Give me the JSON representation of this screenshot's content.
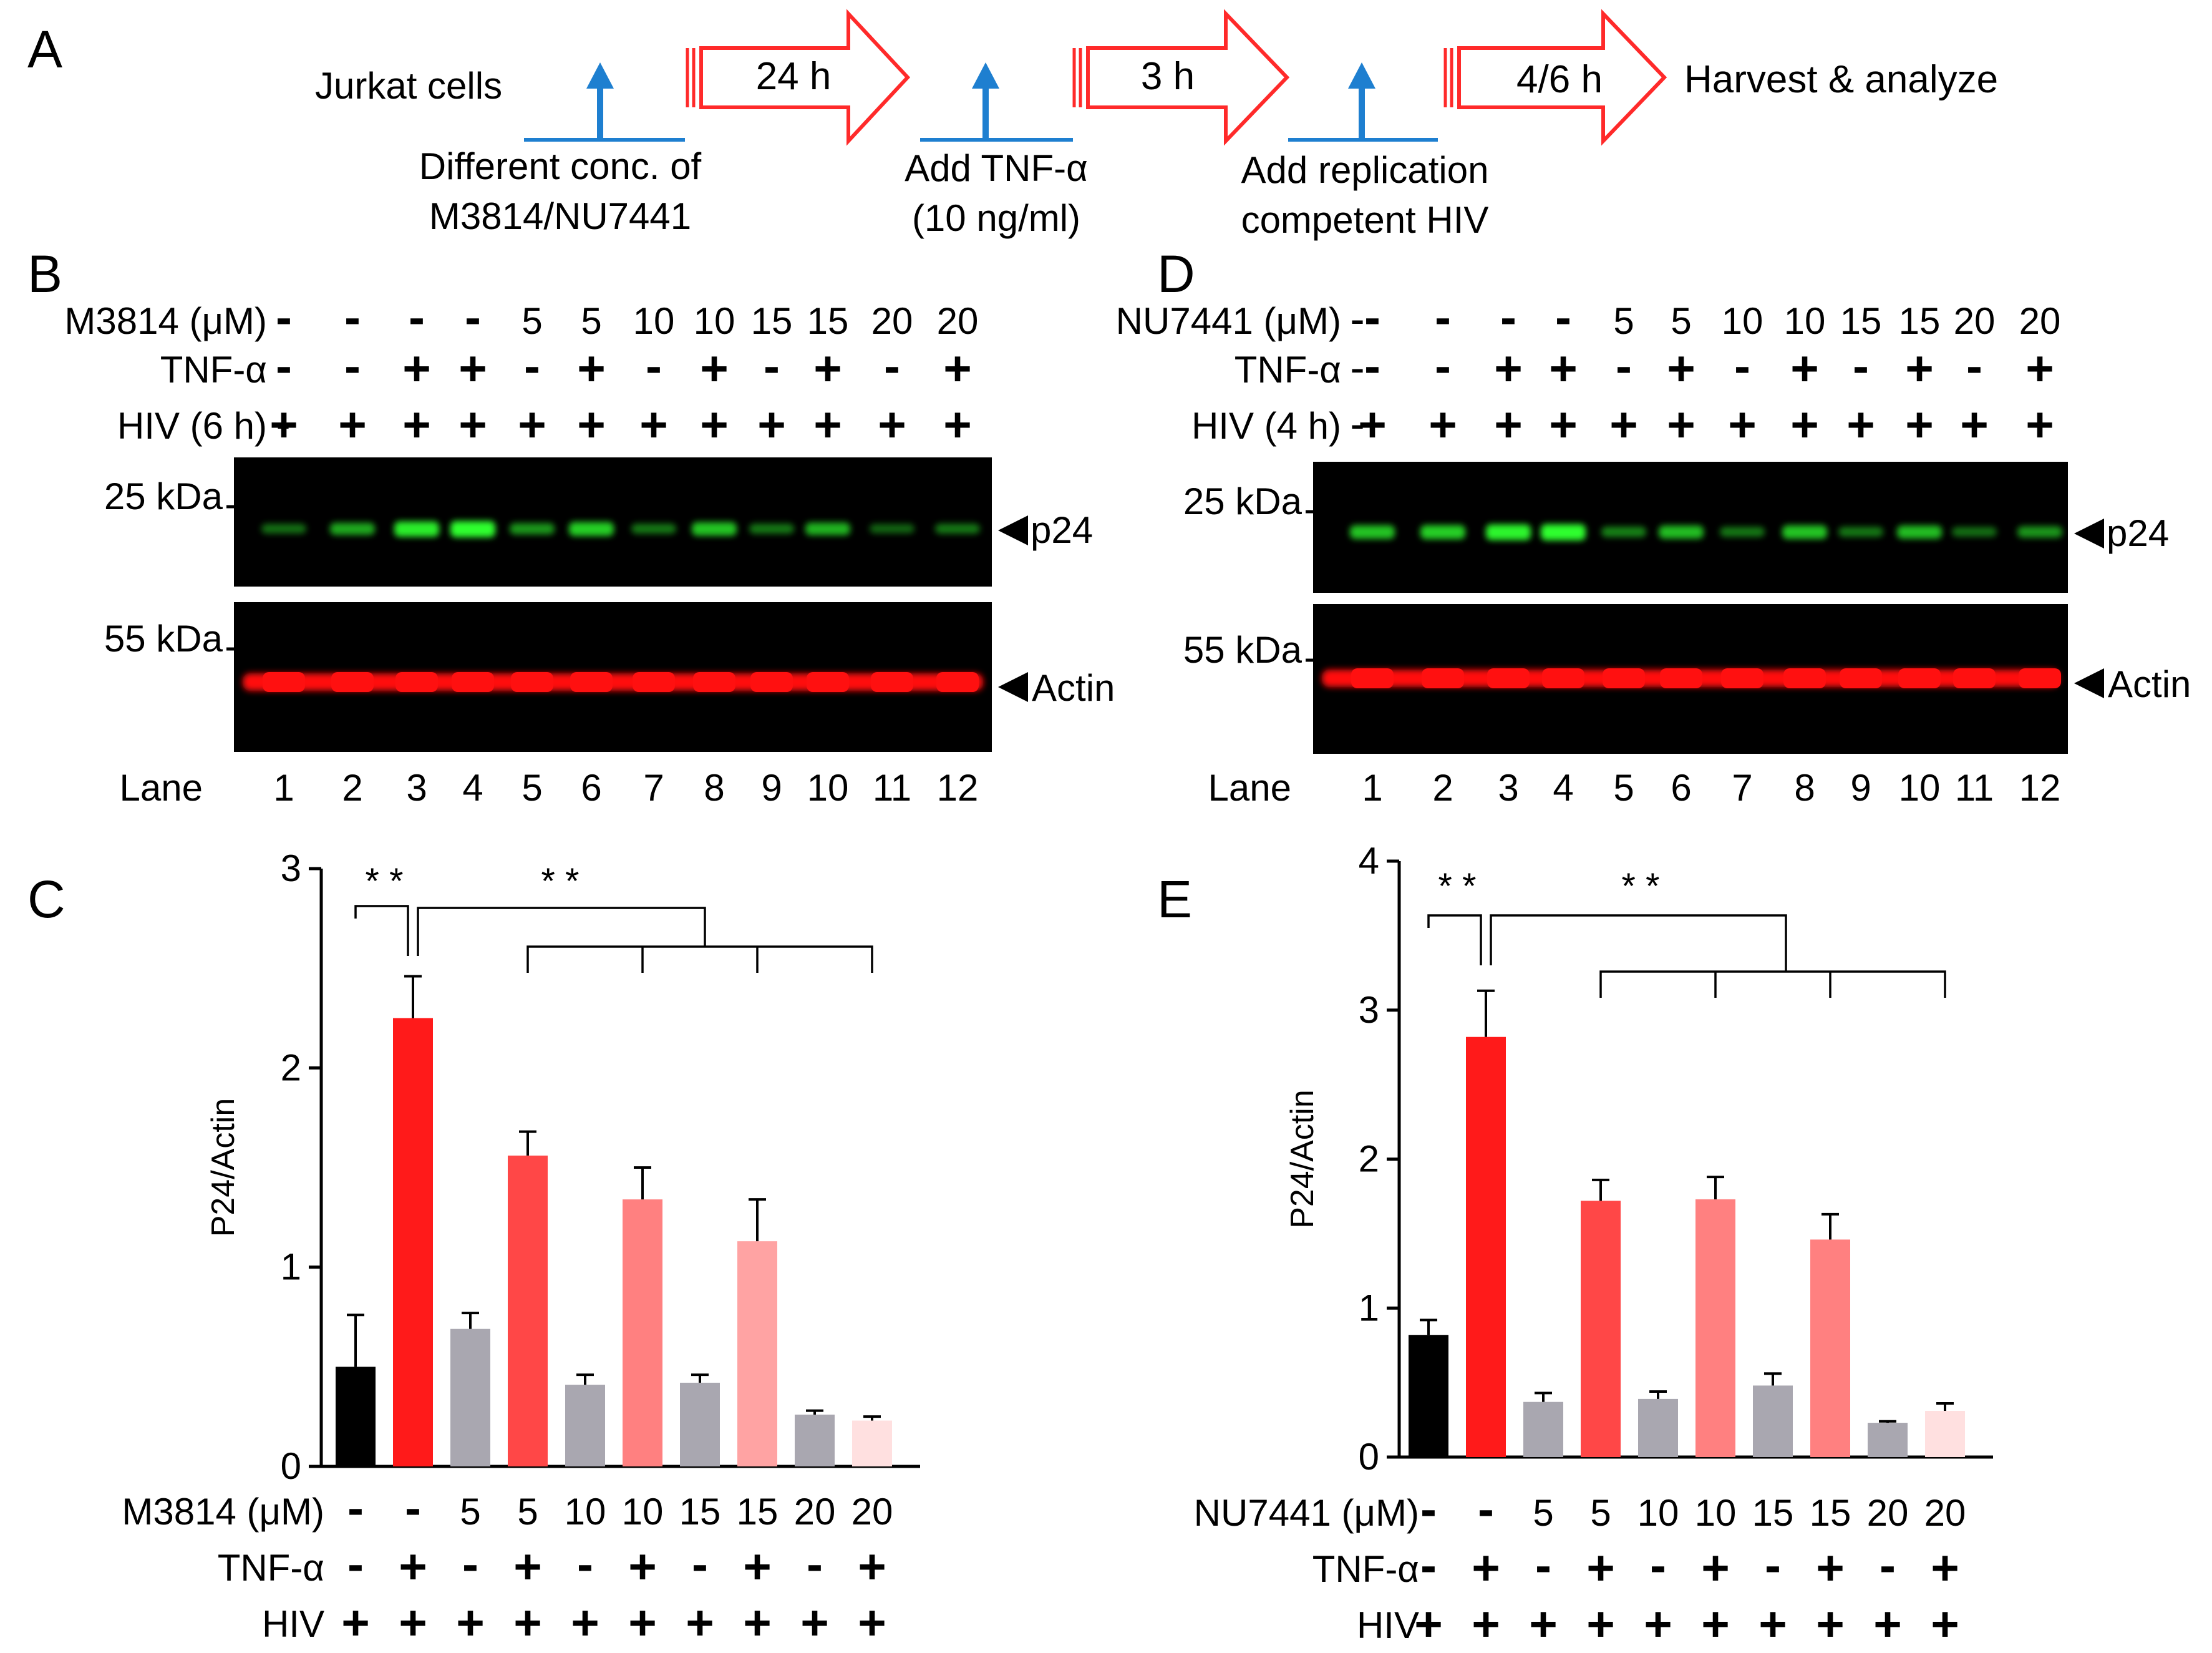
{
  "panel_letters": {
    "a": "A",
    "b": "B",
    "c": "C",
    "d": "D",
    "e": "E"
  },
  "colors": {
    "black": "#000000",
    "red": "#ff1a1a",
    "red2": "#ff4747",
    "red3": "#ff8080",
    "red4": "#ffa3a3",
    "pink": "#ffe0e0",
    "gray": "#a9a7b0",
    "arrow_red": "#ff2a2a",
    "arrow_blue": "#1e7fd0",
    "blot_green": "#2dff2d",
    "blot_red": "#ff1010"
  },
  "schematic": {
    "start_label": "Jurkat cells",
    "steps": [
      {
        "duration": "24 h",
        "note_line1": "Different conc. of",
        "note_line2": "M3814/NU7441"
      },
      {
        "duration": "3 h",
        "note_line1": "Add TNF-α",
        "note_line2": "(10 ng/ml)"
      },
      {
        "duration": "4/6 h",
        "note_line1": "Add replication",
        "note_line2": "competent HIV"
      }
    ],
    "end_label": "Harvest & analyze"
  },
  "blot_b": {
    "drug_label": "M3814 (μM)",
    "tnf_label": "TNF-α",
    "hiv_label": "HIV (6 h)",
    "drug_row": [
      "-",
      "-",
      "-",
      "-",
      "5",
      "5",
      "10",
      "10",
      "15",
      "15",
      "20",
      "20"
    ],
    "tnf_row": [
      "-",
      "-",
      "+",
      "+",
      "-",
      "+",
      "-",
      "+",
      "-",
      "+",
      "-",
      "+"
    ],
    "hiv_row": [
      "+",
      "+",
      "+",
      "+",
      "+",
      "+",
      "+",
      "+",
      "+",
      "+",
      "+",
      "+"
    ],
    "marker_top": "25 kDa",
    "marker_bottom": "55 kDa",
    "band_top": "p24",
    "band_bottom": "Actin",
    "lane_label": "Lane",
    "lanes": [
      "1",
      "2",
      "3",
      "4",
      "5",
      "6",
      "7",
      "8",
      "9",
      "10",
      "11",
      "12"
    ],
    "p24_intensity": [
      0.25,
      0.55,
      0.9,
      1.0,
      0.45,
      0.75,
      0.3,
      0.7,
      0.3,
      0.6,
      0.2,
      0.3
    ]
  },
  "blot_d": {
    "drug_label": "NU7441 (μM)",
    "tnf_label": "TNF-α",
    "hiv_label": "HIV (4 h)",
    "drug_row": [
      "-",
      "-",
      "-",
      "-",
      "5",
      "5",
      "10",
      "10",
      "15",
      "15",
      "20",
      "20"
    ],
    "tnf_row": [
      "-",
      "-",
      "+",
      "+",
      "-",
      "+",
      "-",
      "+",
      "-",
      "+",
      "-",
      "+"
    ],
    "hiv_row": [
      "+",
      "+",
      "+",
      "+",
      "+",
      "+",
      "+",
      "+",
      "+",
      "+",
      "+",
      "+"
    ],
    "marker_top": "25 kDa",
    "marker_bottom": "55 kDa",
    "band_top": "p24",
    "band_bottom": "Actin",
    "lane_label": "Lane",
    "lanes": [
      "1",
      "2",
      "3",
      "4",
      "5",
      "6",
      "7",
      "8",
      "9",
      "10",
      "11",
      "12"
    ],
    "p24_intensity": [
      0.7,
      0.75,
      0.95,
      1.0,
      0.35,
      0.65,
      0.3,
      0.7,
      0.3,
      0.65,
      0.25,
      0.45
    ]
  },
  "chart_data": [
    {
      "type": "bar",
      "panel": "C",
      "ylabel": "P24/Actin",
      "ylim": [
        0,
        3
      ],
      "yticks": [
        "0",
        "1",
        "2",
        "3"
      ],
      "values": [
        0.5,
        2.25,
        0.69,
        1.56,
        0.41,
        1.34,
        0.42,
        1.13,
        0.26,
        0.23
      ],
      "errors": [
        0.26,
        0.21,
        0.08,
        0.12,
        0.05,
        0.16,
        0.04,
        0.21,
        0.02,
        0.02
      ],
      "bar_colors": [
        "#000000",
        "#ff1a1a",
        "#a9a7b0",
        "#ff4747",
        "#a9a7b0",
        "#ff8080",
        "#a9a7b0",
        "#ffa3a3",
        "#a9a7b0",
        "#ffe0e0"
      ],
      "drug_label": "M3814 (μM)",
      "tnf_label": "TNF-α",
      "hiv_label": "HIV",
      "drug_row": [
        "-",
        "-",
        "5",
        "5",
        "10",
        "10",
        "15",
        "15",
        "20",
        "20"
      ],
      "tnf_row": [
        "-",
        "+",
        "-",
        "+",
        "-",
        "+",
        "-",
        "+",
        "-",
        "+"
      ],
      "hiv_row": [
        "+",
        "+",
        "+",
        "+",
        "+",
        "+",
        "+",
        "+",
        "+",
        "+"
      ],
      "significance": [
        "* *",
        "* *"
      ]
    },
    {
      "type": "bar",
      "panel": "E",
      "ylabel": "P24/Actin",
      "ylim": [
        0,
        4
      ],
      "yticks": [
        "0",
        "1",
        "2",
        "3",
        "4"
      ],
      "values": [
        0.82,
        2.82,
        0.37,
        1.72,
        0.39,
        1.73,
        0.48,
        1.46,
        0.23,
        0.31
      ],
      "errors": [
        0.1,
        0.31,
        0.06,
        0.14,
        0.05,
        0.15,
        0.08,
        0.17,
        0.01,
        0.05
      ],
      "bar_colors": [
        "#000000",
        "#ff1a1a",
        "#a9a7b0",
        "#ff4747",
        "#a9a7b0",
        "#ff8080",
        "#a9a7b0",
        "#ff8080",
        "#a9a7b0",
        "#ffe0e0"
      ],
      "drug_label": "NU7441 (μM)",
      "tnf_label": "TNF-α",
      "hiv_label": "HIV",
      "drug_row": [
        "-",
        "-",
        "5",
        "5",
        "10",
        "10",
        "15",
        "15",
        "20",
        "20"
      ],
      "tnf_row": [
        "-",
        "+",
        "-",
        "+",
        "-",
        "+",
        "-",
        "+",
        "-",
        "+"
      ],
      "hiv_row": [
        "+",
        "+",
        "+",
        "+",
        "+",
        "+",
        "+",
        "+",
        "+",
        "+"
      ],
      "significance": [
        "* *",
        "* *"
      ]
    }
  ]
}
